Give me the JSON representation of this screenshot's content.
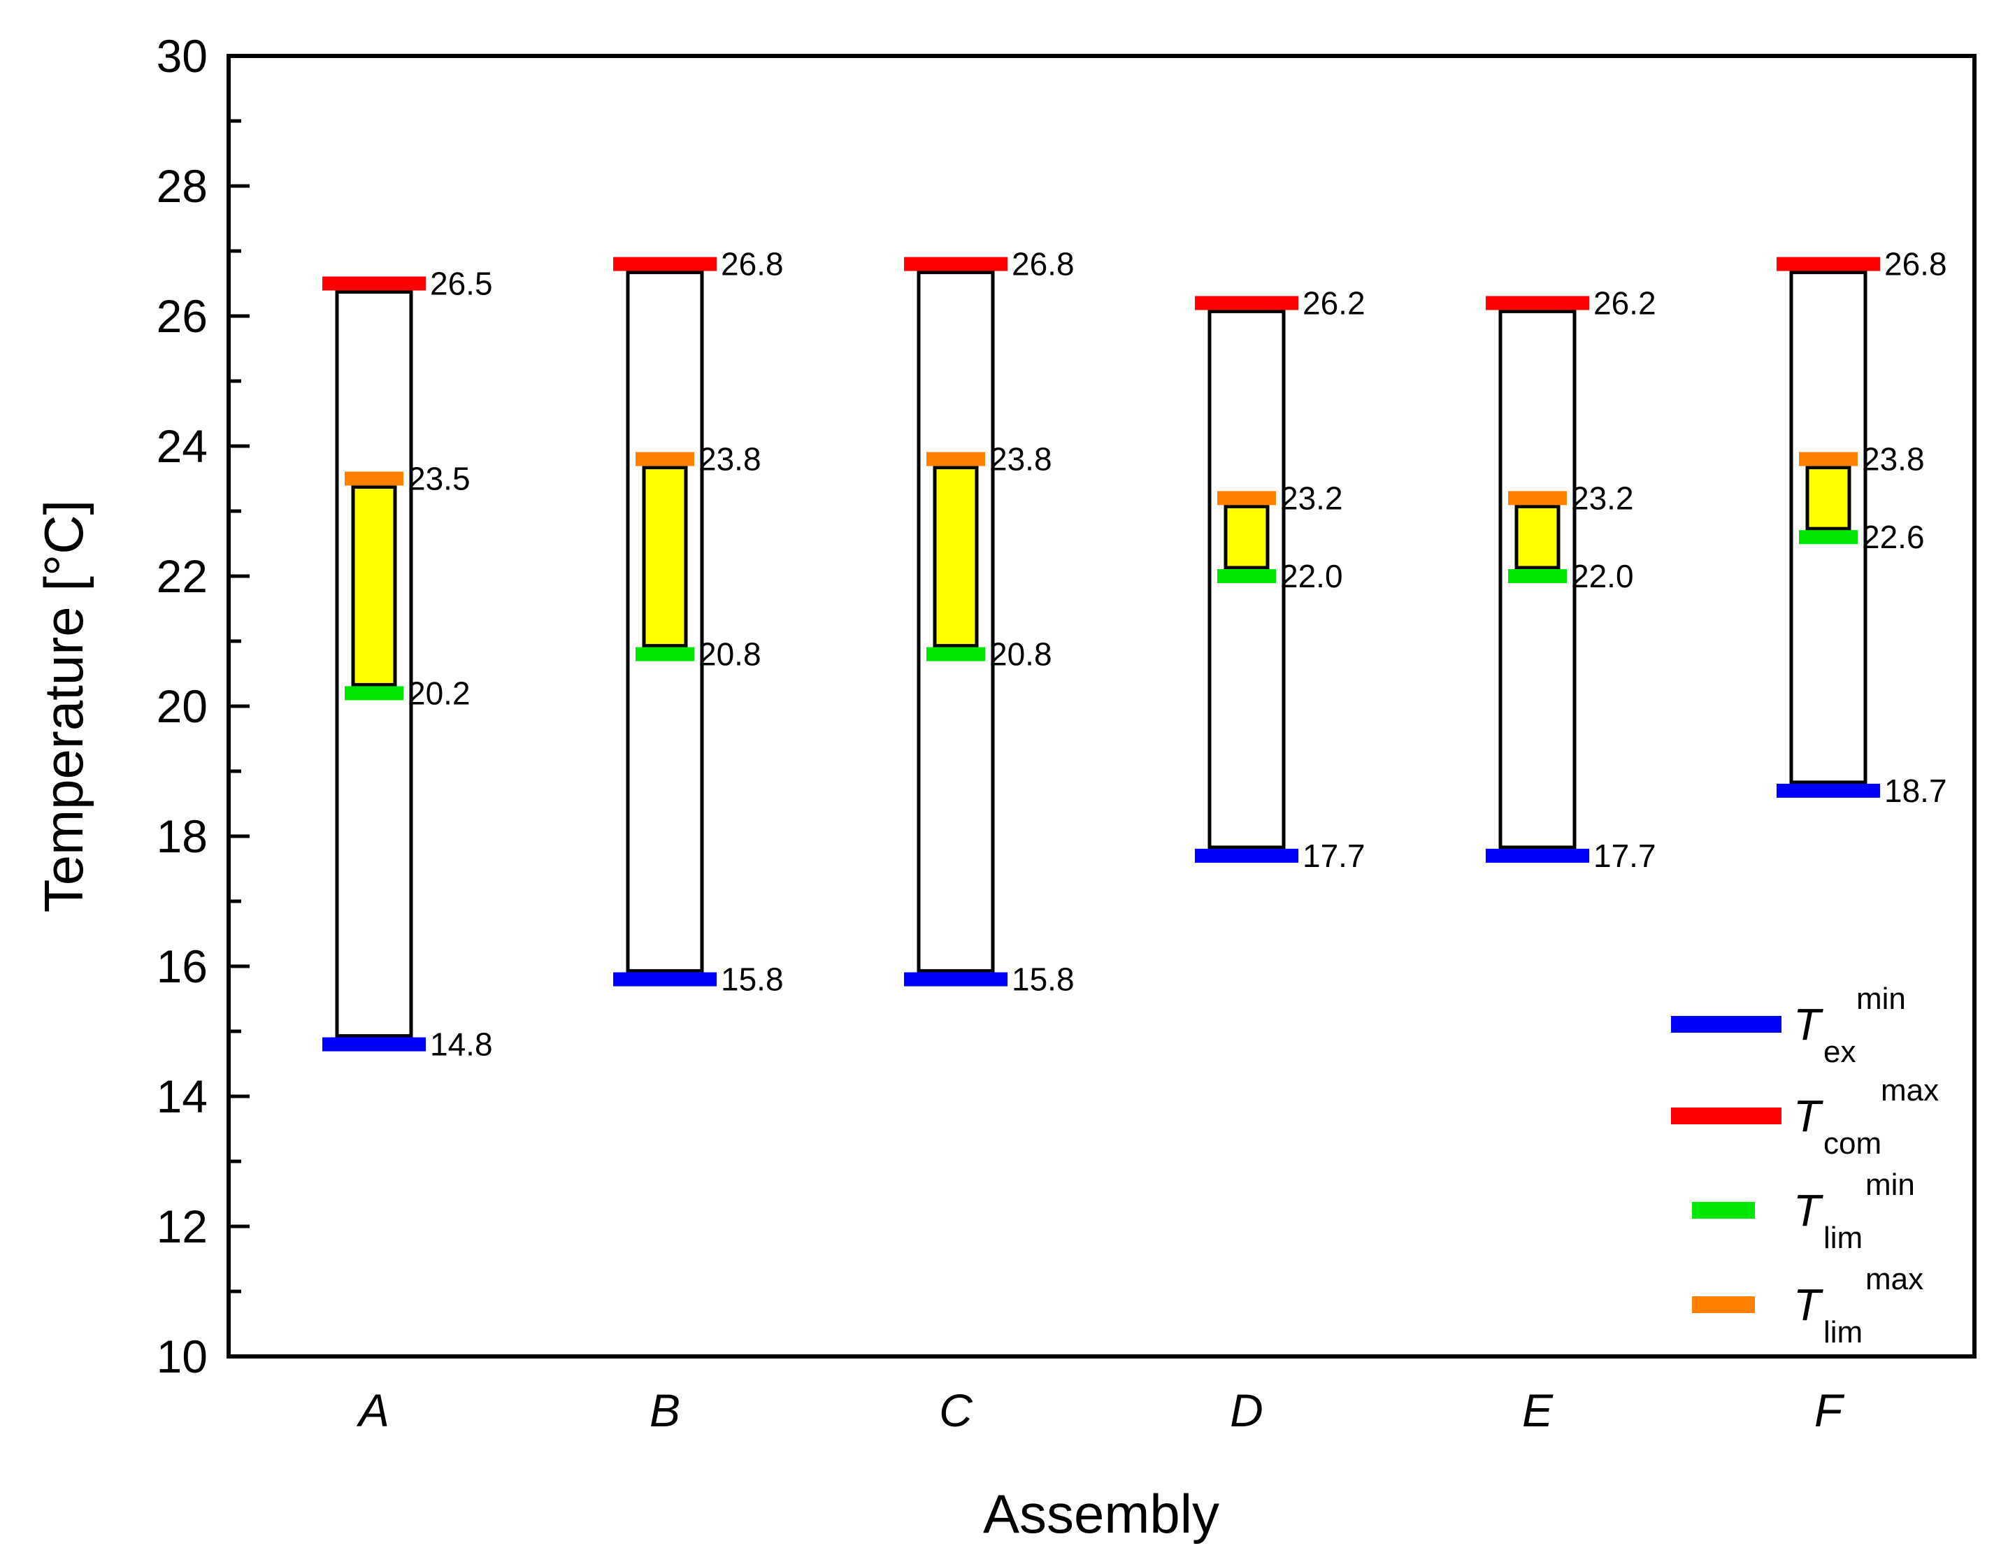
{
  "chart_data": {
    "type": "range",
    "xlabel": "Assembly",
    "ylabel": "Temperature [°C]",
    "ylim": [
      10,
      30
    ],
    "ymajor_ticks": [
      10,
      12,
      14,
      16,
      18,
      20,
      22,
      24,
      26,
      28,
      30
    ],
    "ytick_labels": [
      "10",
      "12",
      "14",
      "16",
      "18",
      "20",
      "22",
      "24",
      "26",
      "28",
      "30"
    ],
    "yminor_step": 1,
    "grid": false,
    "legend_position": "bottom-right",
    "categories": [
      "A",
      "B",
      "C",
      "D",
      "E",
      "F"
    ],
    "series": [
      {
        "key": "tex_min",
        "name": "T_ex^min",
        "symbol": "T",
        "sub": "ex",
        "sup": "min",
        "color": "#0000FF",
        "values": [
          14.8,
          15.8,
          15.8,
          17.7,
          17.7,
          18.7
        ],
        "labels": [
          "14.8",
          "15.8",
          "15.8",
          "17.7",
          "17.7",
          "18.7"
        ]
      },
      {
        "key": "tcom_max",
        "name": "T_com^max",
        "symbol": "T",
        "sub": "com",
        "sup": "max",
        "color": "#FF0000",
        "values": [
          26.5,
          26.8,
          26.8,
          26.2,
          26.2,
          26.8
        ],
        "labels": [
          "26.5",
          "26.8",
          "26.8",
          "26.2",
          "26.2",
          "26.8"
        ]
      },
      {
        "key": "tlim_min",
        "name": "T_lim^min",
        "symbol": "T",
        "sub": "lim",
        "sup": "min",
        "color": "#00E600",
        "values": [
          20.2,
          20.8,
          20.8,
          22.0,
          22.0,
          22.6
        ],
        "labels": [
          "20.2",
          "20.8",
          "20.8",
          "22.0",
          "22.0",
          "22.6"
        ]
      },
      {
        "key": "tlim_max",
        "name": "T_lim^max",
        "symbol": "T",
        "sub": "lim",
        "sup": "max",
        "color": "#FF8000",
        "values": [
          23.5,
          23.8,
          23.8,
          23.2,
          23.2,
          23.8
        ],
        "labels": [
          "23.5",
          "23.8",
          "23.8",
          "23.2",
          "23.2",
          "23.8"
        ]
      }
    ],
    "comfort_fill_color": "#FFFF00",
    "outer_box_color": "#FFFFFF"
  }
}
